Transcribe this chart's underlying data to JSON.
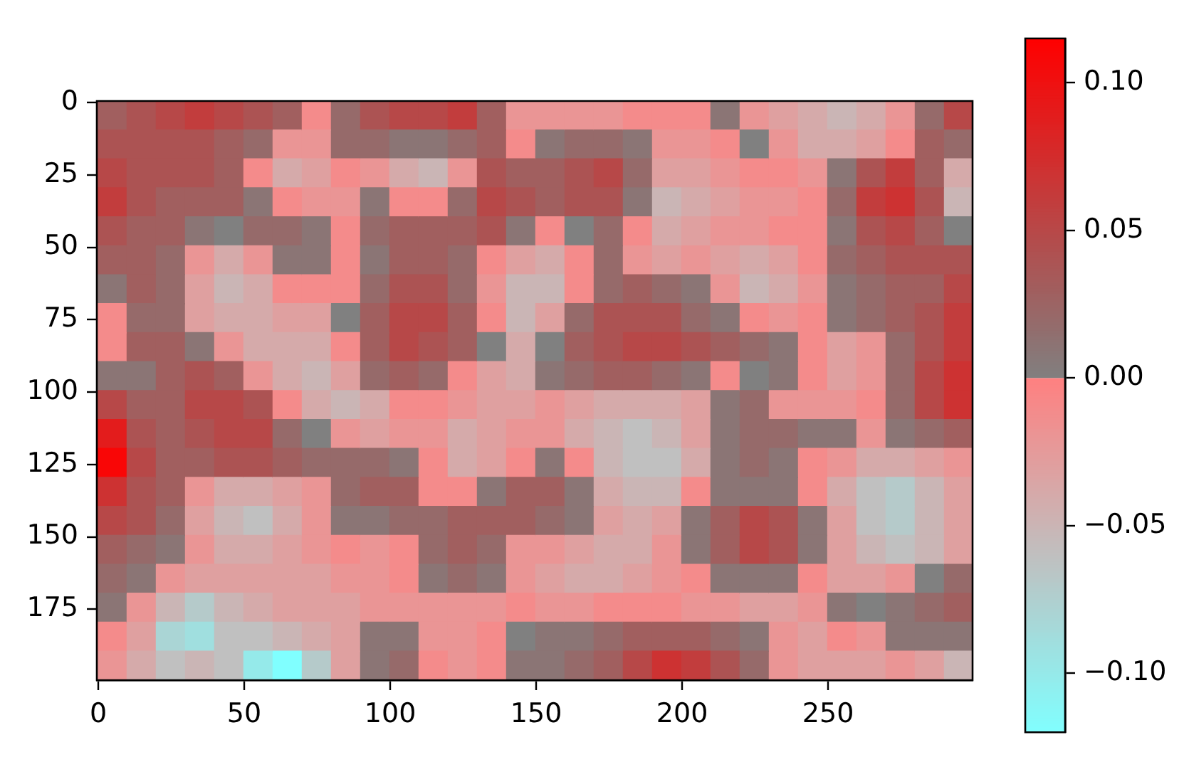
{
  "chart_data": {
    "type": "heatmap",
    "xlim": [
      -0.5,
      299.5
    ],
    "ylim": [
      199.5,
      -0.5
    ],
    "xticks": [
      0,
      50,
      100,
      150,
      200,
      250
    ],
    "yticks": [
      0,
      25,
      50,
      75,
      100,
      125,
      150,
      175
    ],
    "clim": [
      -0.12,
      0.115
    ],
    "cticks": [
      {
        "value": -0.1,
        "label": "−0.10"
      },
      {
        "value": -0.05,
        "label": "−0.05"
      },
      {
        "value": 0,
        "label": "0.00"
      },
      0.05,
      {
        "value": 0.1,
        "label": "0.10"
      }
    ],
    "cells": [
      [
        0.03,
        0.04,
        0.05,
        0.06,
        0.05,
        0.04,
        0.03,
        -0.01,
        0.02,
        0.04,
        0.05,
        0.05,
        0.06,
        0.03,
        -0.02,
        -0.02,
        -0.02,
        -0.02,
        -0.01,
        -0.01,
        -0.01,
        0.01,
        -0.02,
        -0.03,
        -0.04,
        -0.05,
        -0.04,
        -0.02,
        0.02,
        0.05
      ],
      [
        0.04,
        0.04,
        0.04,
        0.04,
        0.03,
        0.02,
        -0.02,
        -0.02,
        0.02,
        0.02,
        0.01,
        0.01,
        0.02,
        0.03,
        -0.01,
        0.01,
        0.02,
        0.02,
        0.01,
        -0.02,
        -0.02,
        -0.01,
        0.0,
        -0.02,
        -0.04,
        -0.04,
        -0.03,
        -0.01,
        0.03,
        0.02
      ],
      [
        0.05,
        0.04,
        0.04,
        0.04,
        0.03,
        -0.01,
        -0.04,
        -0.03,
        -0.01,
        -0.02,
        -0.04,
        -0.05,
        -0.02,
        0.04,
        0.03,
        0.03,
        0.04,
        0.05,
        0.02,
        -0.03,
        -0.03,
        -0.02,
        -0.01,
        -0.01,
        -0.02,
        0.01,
        0.04,
        0.06,
        0.03,
        -0.04
      ],
      [
        0.06,
        0.04,
        0.03,
        0.03,
        0.03,
        0.01,
        -0.01,
        -0.02,
        -0.02,
        0.01,
        -0.01,
        -0.01,
        0.02,
        0.05,
        0.04,
        0.03,
        0.04,
        0.04,
        0.01,
        -0.05,
        -0.04,
        -0.03,
        -0.02,
        -0.02,
        -0.01,
        0.02,
        0.06,
        0.07,
        0.04,
        -0.05
      ],
      [
        0.04,
        0.03,
        0.03,
        0.01,
        0.0,
        0.02,
        0.02,
        0.01,
        -0.01,
        0.02,
        0.03,
        0.03,
        0.03,
        0.04,
        0.01,
        -0.01,
        0.0,
        0.02,
        -0.01,
        -0.04,
        -0.03,
        -0.02,
        -0.02,
        -0.01,
        -0.01,
        0.01,
        0.04,
        0.05,
        0.03,
        0.0
      ],
      [
        0.03,
        0.03,
        0.02,
        -0.02,
        -0.04,
        -0.02,
        0.01,
        0.01,
        -0.01,
        0.01,
        0.03,
        0.03,
        0.02,
        -0.01,
        -0.03,
        -0.04,
        -0.01,
        0.02,
        -0.02,
        -0.03,
        -0.02,
        -0.03,
        -0.04,
        -0.03,
        -0.01,
        0.02,
        0.03,
        0.04,
        0.04,
        0.04
      ],
      [
        0.01,
        0.03,
        0.02,
        -0.03,
        -0.05,
        -0.04,
        -0.01,
        -0.01,
        -0.01,
        0.02,
        0.04,
        0.04,
        0.02,
        -0.02,
        -0.05,
        -0.05,
        -0.01,
        0.02,
        0.03,
        0.02,
        0.01,
        -0.02,
        -0.05,
        -0.04,
        -0.02,
        0.01,
        0.02,
        0.03,
        0.03,
        0.05
      ],
      [
        -0.01,
        0.02,
        0.02,
        -0.03,
        -0.04,
        -0.04,
        -0.03,
        -0.03,
        0.0,
        0.03,
        0.05,
        0.05,
        0.03,
        -0.01,
        -0.05,
        -0.03,
        0.02,
        0.04,
        0.04,
        0.04,
        0.02,
        0.01,
        -0.01,
        -0.02,
        -0.01,
        0.01,
        0.02,
        0.03,
        0.04,
        0.06
      ],
      [
        -0.01,
        0.03,
        0.03,
        0.01,
        -0.02,
        -0.04,
        -0.04,
        -0.04,
        -0.01,
        0.03,
        0.05,
        0.04,
        0.03,
        0.0,
        -0.04,
        0.0,
        0.03,
        0.04,
        0.05,
        0.05,
        0.04,
        0.03,
        0.02,
        0.01,
        -0.01,
        -0.03,
        -0.02,
        0.02,
        0.04,
        0.06
      ],
      [
        0.01,
        0.01,
        0.03,
        0.04,
        0.03,
        -0.02,
        -0.04,
        -0.05,
        -0.03,
        0.02,
        0.03,
        0.02,
        -0.01,
        -0.03,
        -0.04,
        0.01,
        0.02,
        0.03,
        0.03,
        0.02,
        0.01,
        -0.01,
        0.0,
        0.01,
        -0.01,
        -0.03,
        -0.02,
        0.02,
        0.05,
        0.07
      ],
      [
        0.05,
        0.03,
        0.03,
        0.05,
        0.05,
        0.04,
        -0.01,
        -0.04,
        -0.05,
        -0.04,
        -0.01,
        -0.01,
        -0.02,
        -0.03,
        -0.03,
        -0.02,
        -0.03,
        -0.04,
        -0.04,
        -0.04,
        -0.03,
        0.01,
        0.02,
        -0.02,
        -0.02,
        -0.02,
        -0.01,
        0.02,
        0.05,
        0.07
      ],
      [
        0.09,
        0.04,
        0.03,
        0.04,
        0.05,
        0.05,
        0.02,
        0.0,
        -0.02,
        -0.03,
        -0.02,
        -0.02,
        -0.04,
        -0.03,
        -0.02,
        -0.02,
        -0.04,
        -0.05,
        -0.06,
        -0.05,
        -0.03,
        0.01,
        0.02,
        0.02,
        0.01,
        0.01,
        -0.02,
        0.01,
        0.02,
        0.03
      ],
      [
        0.11,
        0.05,
        0.03,
        0.03,
        0.04,
        0.04,
        0.03,
        0.02,
        0.02,
        0.02,
        0.01,
        -0.01,
        -0.04,
        -0.03,
        -0.01,
        0.01,
        -0.01,
        -0.05,
        -0.06,
        -0.06,
        -0.04,
        0.01,
        0.02,
        0.01,
        -0.01,
        -0.02,
        -0.04,
        -0.04,
        -0.03,
        -0.02
      ],
      [
        0.07,
        0.04,
        0.03,
        -0.02,
        -0.04,
        -0.04,
        -0.03,
        -0.02,
        0.02,
        0.03,
        0.03,
        -0.01,
        -0.01,
        0.01,
        0.03,
        0.03,
        0.01,
        -0.04,
        -0.05,
        -0.05,
        -0.01,
        0.01,
        0.01,
        0.01,
        -0.01,
        -0.04,
        -0.06,
        -0.07,
        -0.05,
        -0.03
      ],
      [
        0.05,
        0.04,
        0.02,
        -0.03,
        -0.05,
        -0.06,
        -0.04,
        -0.02,
        0.01,
        0.01,
        0.02,
        0.02,
        0.03,
        0.03,
        0.03,
        0.02,
        0.01,
        -0.03,
        -0.04,
        -0.03,
        0.01,
        0.03,
        0.05,
        0.04,
        0.01,
        -0.03,
        -0.06,
        -0.07,
        -0.05,
        -0.03
      ],
      [
        0.03,
        0.02,
        0.01,
        -0.02,
        -0.04,
        -0.04,
        -0.03,
        -0.02,
        -0.01,
        -0.02,
        -0.01,
        0.02,
        0.03,
        0.02,
        -0.02,
        -0.02,
        -0.03,
        -0.04,
        -0.04,
        -0.02,
        0.01,
        0.03,
        0.05,
        0.04,
        0.01,
        -0.03,
        -0.05,
        -0.06,
        -0.05,
        -0.03
      ],
      [
        0.02,
        0.01,
        -0.02,
        -0.03,
        -0.03,
        -0.03,
        -0.03,
        -0.03,
        -0.02,
        -0.02,
        -0.01,
        0.01,
        0.02,
        0.01,
        -0.02,
        -0.03,
        -0.04,
        -0.04,
        -0.03,
        -0.02,
        -0.01,
        0.01,
        0.01,
        0.01,
        -0.01,
        -0.03,
        -0.03,
        -0.02,
        0.0,
        0.02
      ],
      [
        0.01,
        -0.02,
        -0.05,
        -0.07,
        -0.05,
        -0.04,
        -0.03,
        -0.03,
        -0.03,
        -0.02,
        -0.02,
        -0.02,
        -0.02,
        -0.02,
        -0.01,
        -0.02,
        -0.02,
        -0.01,
        -0.01,
        -0.01,
        -0.02,
        -0.02,
        -0.03,
        -0.03,
        -0.02,
        0.01,
        0.0,
        0.01,
        0.02,
        0.03
      ],
      [
        -0.01,
        -0.03,
        -0.08,
        -0.09,
        -0.06,
        -0.06,
        -0.05,
        -0.04,
        -0.03,
        0.01,
        0.01,
        -0.02,
        -0.02,
        -0.01,
        0.0,
        0.01,
        0.01,
        0.02,
        0.03,
        0.03,
        0.03,
        0.02,
        0.01,
        -0.02,
        -0.03,
        -0.01,
        -0.02,
        0.01,
        0.01,
        0.01
      ],
      [
        -0.02,
        -0.04,
        -0.06,
        -0.05,
        -0.06,
        -0.1,
        -0.12,
        -0.07,
        -0.03,
        0.01,
        0.02,
        -0.01,
        -0.02,
        -0.01,
        0.01,
        0.01,
        0.02,
        0.03,
        0.05,
        0.07,
        0.06,
        0.04,
        0.02,
        -0.02,
        -0.03,
        -0.03,
        -0.03,
        -0.02,
        -0.03,
        -0.05
      ]
    ]
  }
}
